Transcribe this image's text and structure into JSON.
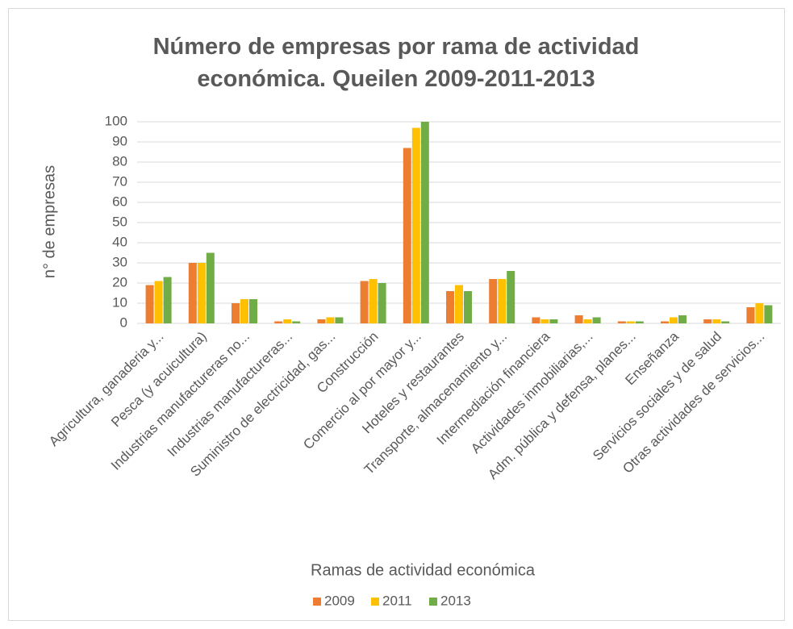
{
  "chart_data": {
    "type": "bar",
    "title": "Número de empresas por rama de actividad económica. Queilen 2009-2011-2013",
    "x_label": "Ramas de actividad económica",
    "y_label": "n° de empresas",
    "categories": [
      "Agricultura, ganaderia y...",
      "Pesca (y acuicultura)",
      "Industrias manufactureras no...",
      "Industrias manufactureras...",
      "Suministro de electricidad, gas...",
      "Construcción",
      "Comercio al por mayor y...",
      "Hoteles y restaurantes",
      "Transporte, almacenamiento y...",
      "Intermediación financiera",
      "Actividades inmobiliarias,...",
      "Adm. pública y defensa, planes...",
      "Enseñanza",
      "Servicios sociales y de salud",
      "Otras actividades de servicios..."
    ],
    "series": [
      {
        "name": "2009",
        "color": "#ED7D31",
        "values": [
          19,
          30,
          10,
          1,
          2,
          21,
          87,
          16,
          22,
          3,
          4,
          1,
          1,
          2,
          8
        ]
      },
      {
        "name": "2011",
        "color": "#FFC000",
        "values": [
          21,
          30,
          12,
          2,
          3,
          22,
          97,
          19,
          22,
          2,
          2,
          1,
          3,
          2,
          10
        ]
      },
      {
        "name": "2013",
        "color": "#70AD47",
        "values": [
          23,
          35,
          12,
          1,
          3,
          20,
          100,
          16,
          26,
          2,
          3,
          1,
          4,
          1,
          9
        ]
      }
    ],
    "ylim": [
      0,
      100
    ],
    "yticks": [
      0,
      10,
      20,
      30,
      40,
      50,
      60,
      70,
      80,
      90,
      100
    ],
    "grid": true,
    "legend": "bottom"
  }
}
